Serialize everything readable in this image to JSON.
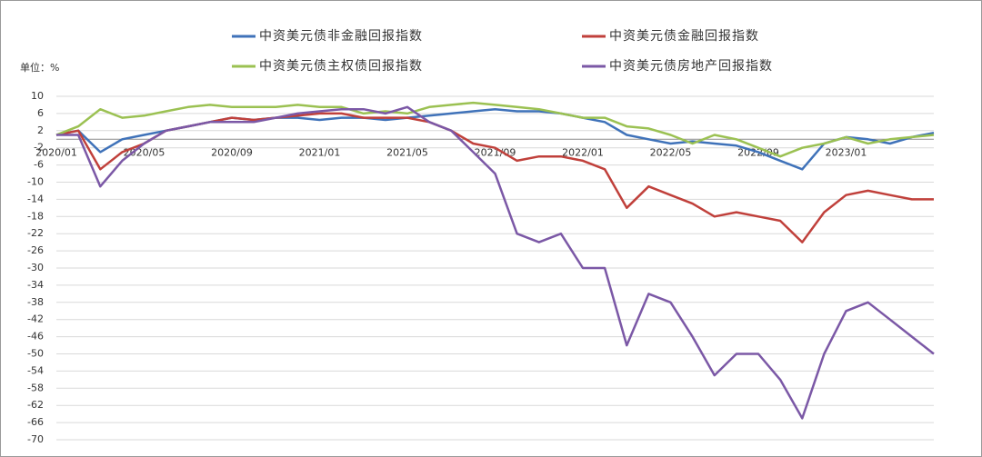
{
  "chart_data": {
    "type": "line",
    "y_label": "单位：%",
    "categories": [
      "2020/01",
      null,
      null,
      null,
      "2020/05",
      null,
      null,
      null,
      "2020/09",
      null,
      null,
      null,
      "2021/01",
      null,
      null,
      null,
      "2021/05",
      null,
      null,
      null,
      "2021/09",
      null,
      null,
      null,
      "2022/01",
      null,
      null,
      null,
      "2022/05",
      null,
      null,
      null,
      "2022/09",
      null,
      null,
      null,
      "2023/01",
      null,
      null,
      null,
      null
    ],
    "ylim": [
      -70,
      10
    ],
    "yticks": [
      10,
      6,
      2,
      -2,
      -6,
      -10,
      -14,
      -18,
      -22,
      -26,
      -30,
      -34,
      -38,
      -42,
      -46,
      -50,
      -54,
      -58,
      -62,
      -66,
      -70
    ],
    "grid": true,
    "series": [
      {
        "name": "中资美元债非金融回报指数",
        "color": "#3f72b9",
        "values": [
          1,
          2,
          -3,
          0,
          1,
          2,
          3,
          4,
          5,
          4.5,
          5,
          5,
          4.5,
          5,
          5,
          4.5,
          5,
          5.5,
          6,
          6.5,
          7,
          6.5,
          6.5,
          6,
          5,
          4,
          1,
          0,
          -1,
          -0.5,
          -1,
          -1.5,
          -3,
          -5,
          -7,
          -1,
          0.5,
          0,
          -1,
          0.5,
          1.5
        ]
      },
      {
        "name": "中资美元债金融回报指数",
        "color": "#c0403b",
        "values": [
          1,
          2,
          -7,
          -3,
          -1,
          2,
          3,
          4,
          5,
          4.5,
          5,
          5.5,
          6,
          6,
          5,
          5,
          5,
          4,
          2,
          -1,
          -2,
          -5,
          -4,
          -4,
          -5,
          -7,
          -16,
          -11,
          -13,
          -15,
          -18,
          -17,
          -18,
          -19,
          -24,
          -17,
          -13,
          -12,
          -13,
          -14,
          -14
        ]
      },
      {
        "name": "中资美元债主权债回报指数",
        "color": "#9bc152",
        "values": [
          1,
          3,
          7,
          5,
          5.5,
          6.5,
          7.5,
          8,
          7.5,
          7.5,
          7.5,
          8,
          7.5,
          7.5,
          6,
          6.5,
          6,
          7.5,
          8,
          8.5,
          8,
          7.5,
          7,
          6,
          5,
          5,
          3,
          2.5,
          1,
          -1,
          1,
          0,
          -2,
          -4,
          -2,
          -1,
          0.5,
          -1,
          0,
          0.5,
          1
        ]
      },
      {
        "name": "中资美元债房地产回报指数",
        "color": "#7b58a6",
        "values": [
          1,
          1,
          -11,
          -5,
          -1,
          2,
          3,
          4,
          4,
          4,
          5,
          6,
          6.5,
          7,
          7,
          6,
          7.5,
          4,
          2,
          -3,
          -8,
          -22,
          -24,
          -22,
          -30,
          -30,
          -48,
          -36,
          -38,
          -46,
          -55,
          -50,
          -50,
          -56,
          -65,
          -50,
          -40,
          -38,
          -42,
          -46,
          -50
        ]
      }
    ]
  }
}
